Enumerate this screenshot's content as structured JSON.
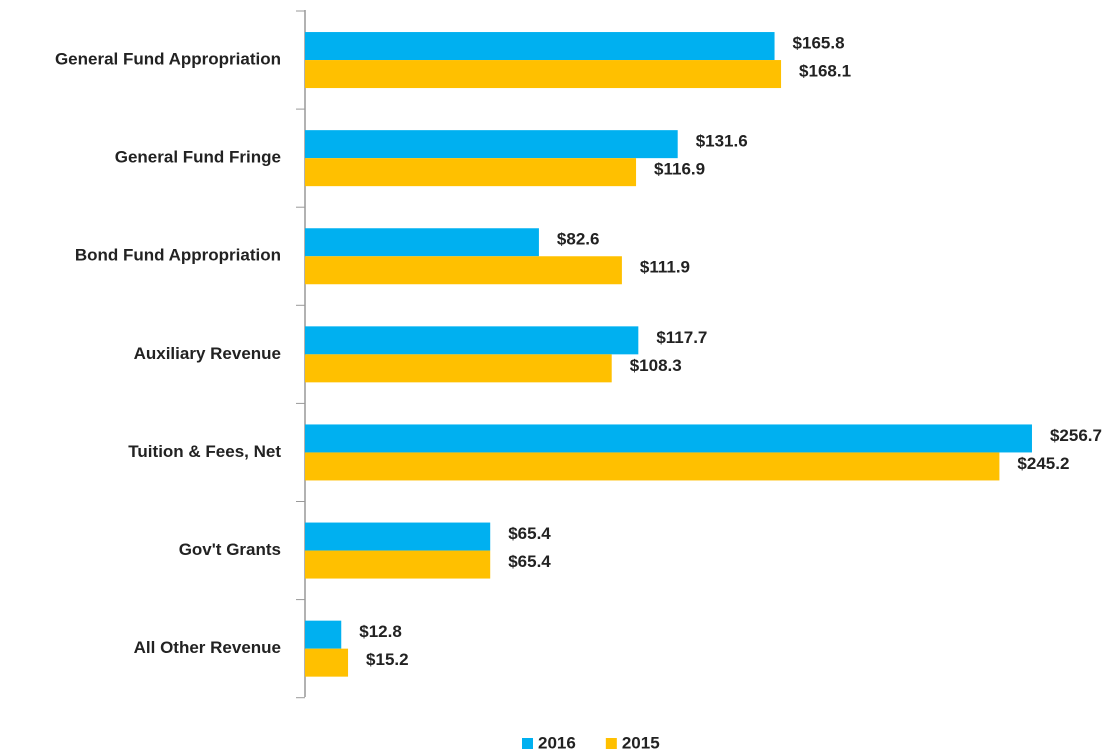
{
  "chart_data": {
    "type": "hbar",
    "categories": [
      "General Fund Appropriation",
      "General Fund Fringe",
      "Bond Fund Appropriation",
      "Auxiliary Revenue",
      "Tuition & Fees, Net",
      "Gov't Grants",
      "All Other Revenue"
    ],
    "series": [
      {
        "name": "2016",
        "color": "#00b0f0",
        "values": [
          165.8,
          131.6,
          82.6,
          117.7,
          256.7,
          65.4,
          12.8
        ],
        "value_labels": [
          "$165.8",
          "$131.6",
          "$82.6",
          "$117.7",
          "$256.7",
          "$65.4",
          "$12.8"
        ]
      },
      {
        "name": "2015",
        "color": "#ffc000",
        "values": [
          168.1,
          116.9,
          111.9,
          108.3,
          245.2,
          65.4,
          15.2
        ],
        "value_labels": [
          "$168.1",
          "$116.9",
          "$111.9",
          "$108.3",
          "$245.2",
          "$65.4",
          "$15.2"
        ]
      }
    ],
    "xlim": [
      0,
      280
    ],
    "legend": "bottom"
  }
}
